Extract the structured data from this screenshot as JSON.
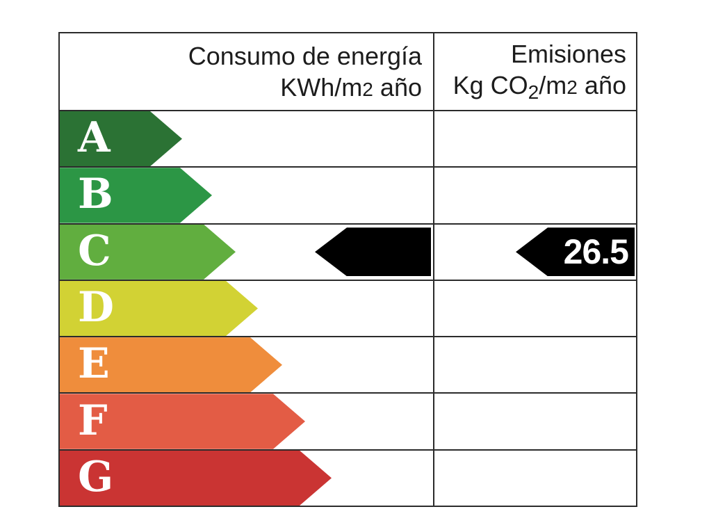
{
  "header": {
    "consumption_title": "Consumo de energía",
    "consumption_unit_pre": "KWh/m",
    "consumption_unit_sup": "2",
    "consumption_unit_post": " año",
    "emissions_title": "Emisiones",
    "emissions_unit_pre": "Kg CO",
    "emissions_unit_sub": "2",
    "emissions_unit_mid": "/m",
    "emissions_unit_sup": "2",
    "emissions_unit_post": " año"
  },
  "indicators": {
    "rating_row": "C",
    "consumption_value": "",
    "emissions_value": "26.5"
  },
  "chart_data": {
    "type": "bar",
    "title": "",
    "columns": [
      "Consumo de energía KWh/m2 año",
      "Emisiones Kg CO2/m2 año"
    ],
    "categories": [
      "A",
      "B",
      "C",
      "D",
      "E",
      "F",
      "G"
    ],
    "values": [
      176,
      219,
      253,
      285,
      320,
      353,
      391
    ],
    "values_note": "arrow lengths in px, increasing from A to G",
    "category_colors": [
      "#2b7234",
      "#2c9645",
      "#61ae3f",
      "#d2d234",
      "#ef8d3c",
      "#e35c45",
      "#ca3433"
    ],
    "selected_rating": "C",
    "emissions_value": 26.5,
    "indicator_color": "#000000",
    "letter_color": "#ffffff",
    "grid_line_color": "#2b2b2b"
  }
}
